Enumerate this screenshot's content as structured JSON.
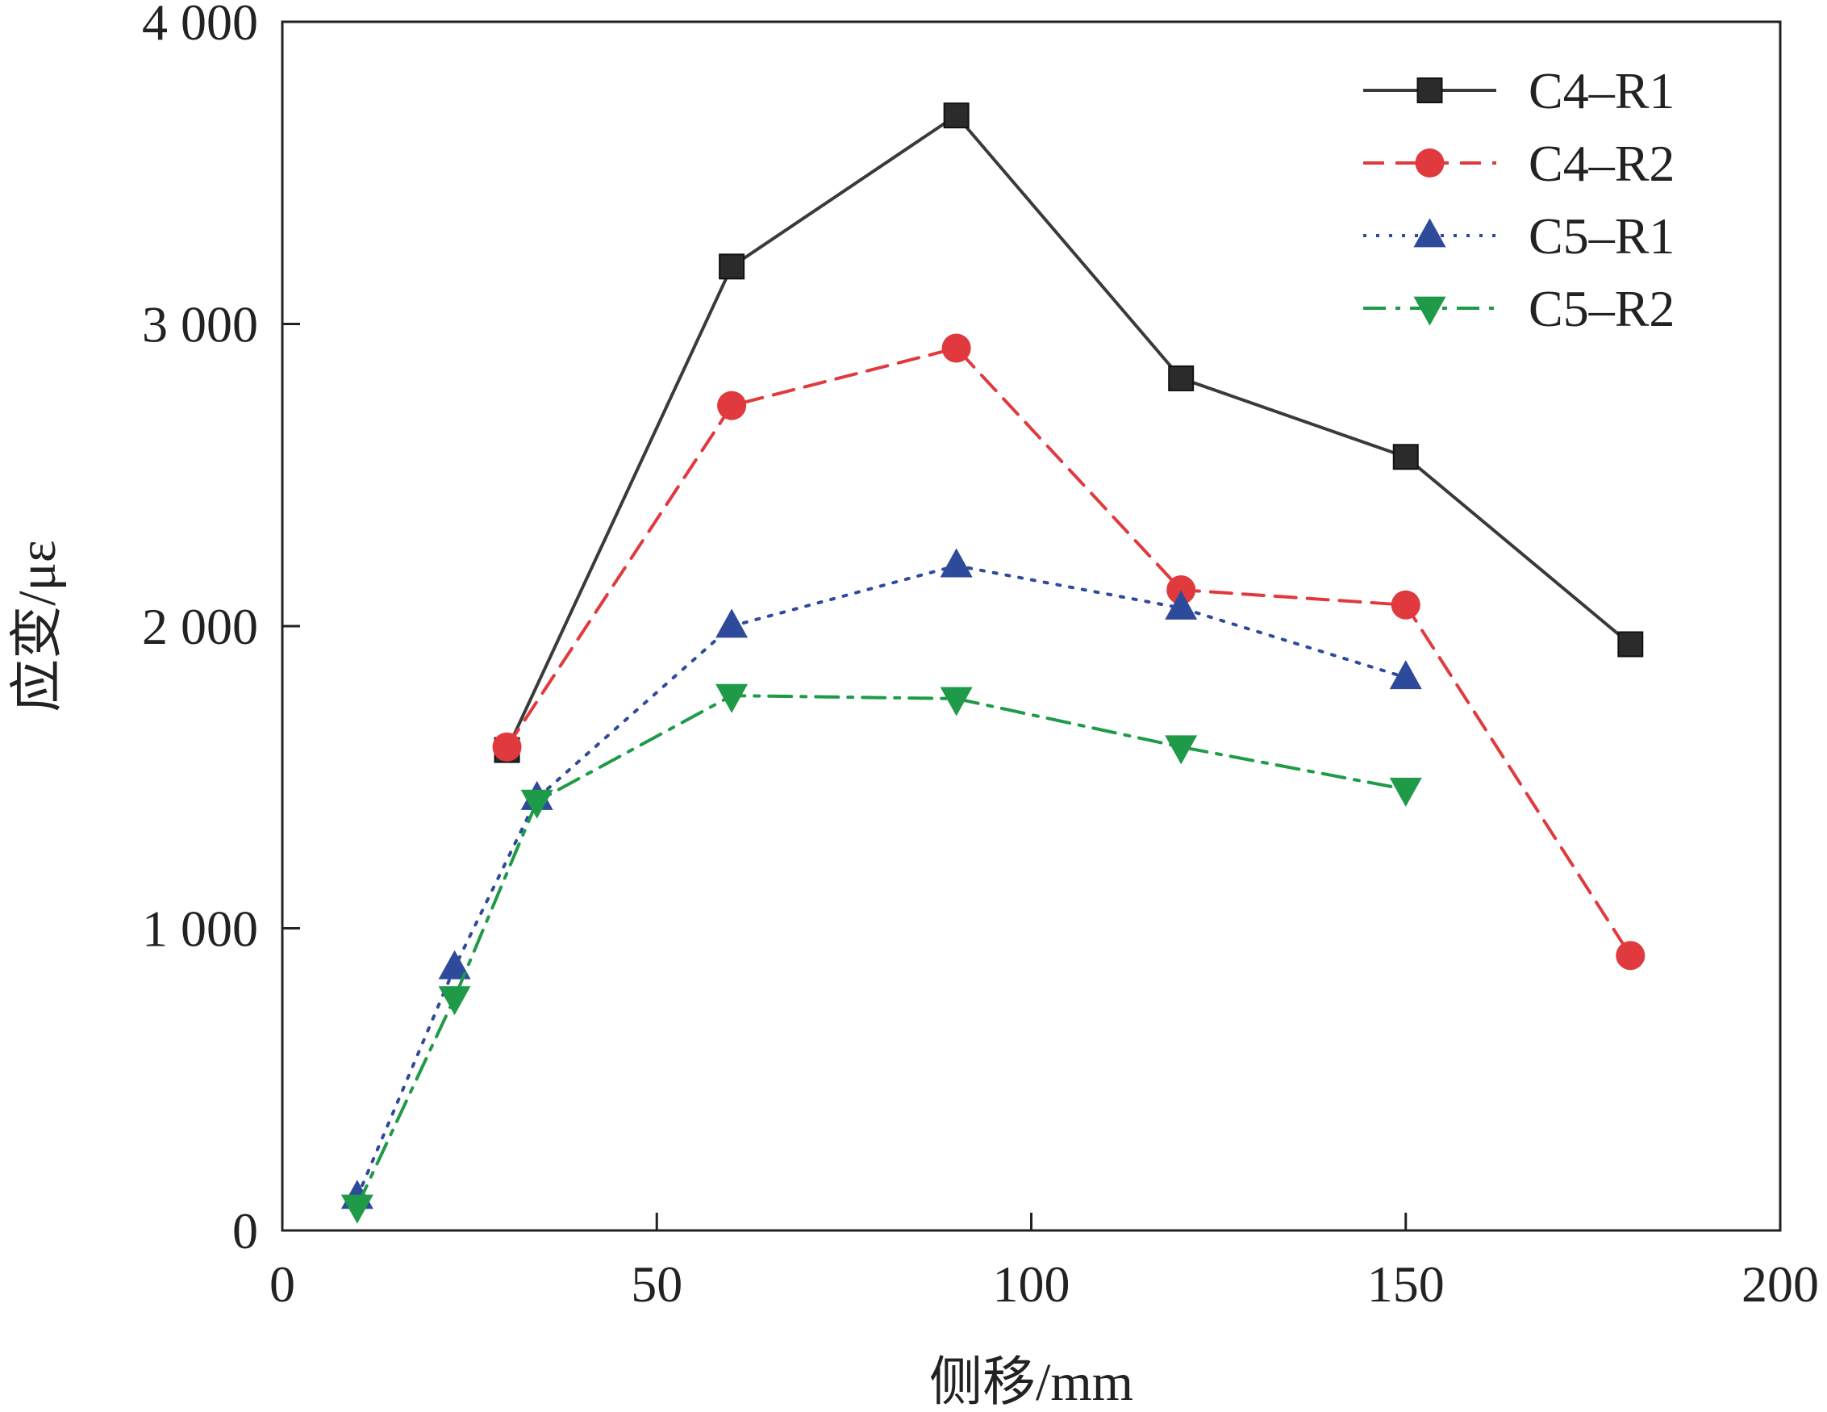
{
  "chart_data": {
    "type": "line",
    "title": "",
    "xlabel": "侧移/mm",
    "ylabel": "应变/με",
    "xlim": [
      0,
      200
    ],
    "ylim": [
      0,
      4000
    ],
    "xticks": [
      0,
      50,
      100,
      150,
      200
    ],
    "yticks": [
      0,
      1000,
      2000,
      3000,
      4000
    ],
    "xtick_labels": [
      "0",
      "50",
      "100",
      "150",
      "200"
    ],
    "ytick_labels": [
      "0",
      "1 000",
      "2 000",
      "3 000",
      "4 000"
    ],
    "grid": false,
    "legend_position": "top-right",
    "series": [
      {
        "name": "C4–R1",
        "color": "#3a3a3a",
        "marker": "square",
        "dash": "solid",
        "points": [
          [
            30,
            1590
          ],
          [
            60,
            3190
          ],
          [
            90,
            3690
          ],
          [
            120,
            2820
          ],
          [
            150,
            2560
          ],
          [
            180,
            1940
          ]
        ]
      },
      {
        "name": "C4–R2",
        "color": "#e03a3e",
        "marker": "circle",
        "dash": "dashed",
        "points": [
          [
            30,
            1600
          ],
          [
            60,
            2730
          ],
          [
            90,
            2920
          ],
          [
            120,
            2120
          ],
          [
            150,
            2070
          ],
          [
            180,
            910
          ]
        ]
      },
      {
        "name": "C5–R1",
        "color": "#2e4a9a",
        "marker": "triangle-up",
        "dash": "dotted",
        "points": [
          [
            10,
            110
          ],
          [
            23,
            870
          ],
          [
            34,
            1430
          ],
          [
            60,
            2000
          ],
          [
            90,
            2200
          ],
          [
            120,
            2060
          ],
          [
            150,
            1830
          ]
        ]
      },
      {
        "name": "C5–R2",
        "color": "#1f9a48",
        "marker": "triangle-down",
        "dash": "dashdot",
        "points": [
          [
            10,
            80
          ],
          [
            23,
            770
          ],
          [
            34,
            1420
          ],
          [
            60,
            1770
          ],
          [
            90,
            1760
          ],
          [
            120,
            1600
          ],
          [
            150,
            1460
          ]
        ]
      }
    ]
  }
}
